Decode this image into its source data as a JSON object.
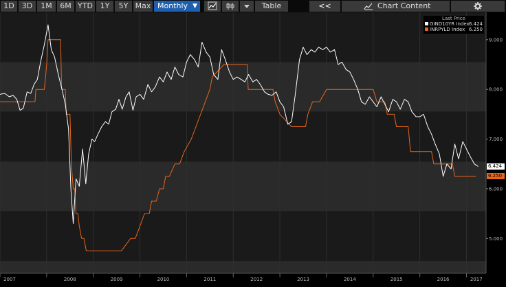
{
  "toolbar": {
    "periods": [
      "1D",
      "3D",
      "1M",
      "6M",
      "YTD",
      "1Y",
      "5Y",
      "Max"
    ],
    "frequency": "Monthly",
    "frequency_arrow": "▼",
    "table_label": "Table",
    "collapse_label": "<<",
    "chart_content_label": "Chart Content",
    "icons": [
      "line-chart-icon",
      "candlestick-icon",
      "dropdown-arrow-icon",
      "chart-content-icon",
      "gear-icon"
    ]
  },
  "legend": {
    "header": "Last Price",
    "items": [
      {
        "name": "GIND10YR Index",
        "value": "6.424",
        "color": "#ffffff"
      },
      {
        "name": "INRPYLD Index",
        "value": "6.250",
        "color": "#e8661c"
      }
    ]
  },
  "last_tags": {
    "gind": "6.424",
    "inr": "6.250"
  },
  "chart_data": {
    "type": "line",
    "y_ticks": [
      "9.000",
      "8.000",
      "7.000",
      "6.000",
      "5.000"
    ],
    "x_ticks": [
      "2007",
      "2008",
      "2009",
      "2010",
      "2011",
      "2012",
      "2013",
      "2014",
      "2015",
      "2016",
      "2017"
    ],
    "ylim": [
      4.3,
      9.55
    ],
    "xlim": [
      2007.0,
      2017.42
    ],
    "colors": {
      "gind": "#ffffff",
      "inr": "#e8661c",
      "bg": "#000000",
      "band_dark": "#1a1a1a",
      "band_light": "#2a2a2a"
    },
    "series": [
      {
        "name": "GIND10YR Index",
        "color": "#ffffff",
        "x": [
          2007.0,
          2007.1,
          2007.2,
          2007.28,
          2007.36,
          2007.43,
          2007.5,
          2007.58,
          2007.66,
          2007.73,
          2007.8,
          2007.87,
          2007.95,
          2008.03,
          2008.1,
          2008.17,
          2008.25,
          2008.33,
          2008.4,
          2008.47,
          2008.52,
          2008.57,
          2008.63,
          2008.7,
          2008.77,
          2008.84,
          2008.9,
          2008.97,
          2009.03,
          2009.1,
          2009.18,
          2009.26,
          2009.33,
          2009.4,
          2009.48,
          2009.55,
          2009.62,
          2009.7,
          2009.77,
          2009.85,
          2009.92,
          2010.0,
          2010.08,
          2010.17,
          2010.25,
          2010.33,
          2010.42,
          2010.5,
          2010.58,
          2010.67,
          2010.75,
          2010.83,
          2010.92,
          2011.0,
          2011.08,
          2011.17,
          2011.25,
          2011.33,
          2011.42,
          2011.5,
          2011.58,
          2011.67,
          2011.75,
          2011.83,
          2011.92,
          2012.0,
          2012.08,
          2012.17,
          2012.25,
          2012.33,
          2012.42,
          2012.5,
          2012.58,
          2012.67,
          2012.75,
          2012.83,
          2012.92,
          2013.0,
          2013.08,
          2013.17,
          2013.25,
          2013.33,
          2013.42,
          2013.5,
          2013.58,
          2013.67,
          2013.75,
          2013.83,
          2013.92,
          2014.0,
          2014.08,
          2014.17,
          2014.25,
          2014.33,
          2014.42,
          2014.5,
          2014.58,
          2014.67,
          2014.75,
          2014.83,
          2014.92,
          2015.0,
          2015.08,
          2015.17,
          2015.25,
          2015.33,
          2015.42,
          2015.5,
          2015.58,
          2015.67,
          2015.75,
          2015.83,
          2015.92,
          2016.0,
          2016.08,
          2016.17,
          2016.25,
          2016.33,
          2016.42,
          2016.5,
          2016.58,
          2016.67,
          2016.75,
          2016.83,
          2016.92,
          2017.0,
          2017.08,
          2017.17,
          2017.25
        ],
        "values": [
          7.9,
          7.92,
          7.85,
          7.88,
          7.8,
          7.58,
          7.62,
          7.95,
          7.92,
          8.1,
          8.2,
          8.55,
          8.9,
          9.3,
          8.8,
          8.65,
          8.3,
          8.0,
          7.7,
          7.2,
          6.0,
          5.3,
          6.2,
          6.05,
          6.8,
          6.1,
          6.7,
          7.0,
          6.95,
          7.1,
          7.25,
          7.35,
          7.3,
          7.55,
          7.6,
          7.8,
          7.6,
          7.85,
          7.95,
          7.58,
          7.85,
          7.9,
          7.8,
          8.1,
          7.95,
          8.05,
          8.25,
          8.15,
          8.35,
          8.2,
          8.45,
          8.3,
          8.25,
          8.55,
          8.7,
          8.6,
          8.45,
          8.95,
          8.75,
          8.65,
          8.3,
          8.2,
          8.8,
          8.6,
          8.35,
          8.2,
          8.25,
          8.2,
          8.15,
          8.3,
          8.15,
          8.2,
          8.1,
          7.95,
          7.9,
          7.88,
          7.95,
          7.75,
          7.65,
          7.3,
          7.35,
          7.9,
          8.6,
          8.85,
          8.7,
          8.8,
          8.75,
          8.85,
          8.8,
          8.85,
          8.75,
          8.8,
          8.5,
          8.55,
          8.4,
          8.35,
          8.2,
          8.0,
          7.75,
          7.7,
          7.85,
          7.75,
          7.65,
          7.85,
          7.7,
          7.55,
          7.8,
          7.75,
          7.6,
          7.8,
          7.75,
          7.55,
          7.45,
          7.45,
          7.5,
          7.25,
          7.1,
          6.9,
          6.7,
          6.25,
          6.5,
          6.4,
          6.9,
          6.6,
          6.95,
          6.8,
          6.65,
          6.5,
          6.45
        ]
      },
      {
        "name": "INRPYLD Index",
        "color": "#e8661c",
        "x": [
          2007.0,
          2007.75,
          2007.77,
          2007.95,
          2008.0,
          2008.03,
          2008.08,
          2008.3,
          2008.32,
          2008.4,
          2008.42,
          2008.5,
          2008.53,
          2008.57,
          2008.6,
          2008.63,
          2008.67,
          2008.7,
          2008.75,
          2008.8,
          2008.85,
          2008.92,
          2009.0,
          2009.2,
          2009.26,
          2009.6,
          2009.8,
          2009.9,
          2010.0,
          2010.1,
          2010.2,
          2010.25,
          2010.35,
          2010.42,
          2010.5,
          2010.55,
          2010.63,
          2010.75,
          2010.85,
          2010.95,
          2011.1,
          2011.2,
          2011.3,
          2011.4,
          2011.5,
          2011.55,
          2011.8,
          2011.85,
          2011.9,
          2012.0,
          2012.3,
          2012.32,
          2012.85,
          2012.9,
          2013.0,
          2013.25,
          2013.3,
          2013.55,
          2013.6,
          2013.7,
          2013.85,
          2014.0,
          2014.5,
          2015.0,
          2015.08,
          2015.25,
          2015.3,
          2015.45,
          2015.5,
          2015.75,
          2015.8,
          2016.25,
          2016.3,
          2016.45,
          2016.5,
          2016.7,
          2016.75,
          2017.2
        ],
        "values": [
          7.75,
          7.75,
          8.0,
          8.0,
          8.5,
          9.0,
          9.0,
          9.0,
          8.0,
          8.0,
          7.5,
          7.5,
          6.5,
          6.0,
          6.0,
          5.5,
          5.5,
          5.25,
          5.0,
          5.0,
          4.75,
          4.75,
          4.75,
          4.75,
          4.75,
          4.75,
          5.0,
          5.0,
          5.25,
          5.5,
          5.5,
          5.75,
          5.75,
          6.0,
          6.0,
          6.25,
          6.25,
          6.5,
          6.5,
          6.75,
          7.0,
          7.25,
          7.5,
          7.75,
          8.0,
          8.25,
          8.5,
          8.5,
          8.5,
          8.5,
          8.5,
          8.0,
          8.0,
          7.75,
          7.5,
          7.25,
          7.25,
          7.25,
          7.5,
          7.75,
          7.75,
          8.0,
          8.0,
          8.0,
          7.75,
          7.75,
          7.5,
          7.5,
          7.25,
          7.25,
          6.75,
          6.75,
          6.5,
          6.5,
          6.5,
          6.5,
          6.25,
          6.25
        ]
      }
    ]
  }
}
